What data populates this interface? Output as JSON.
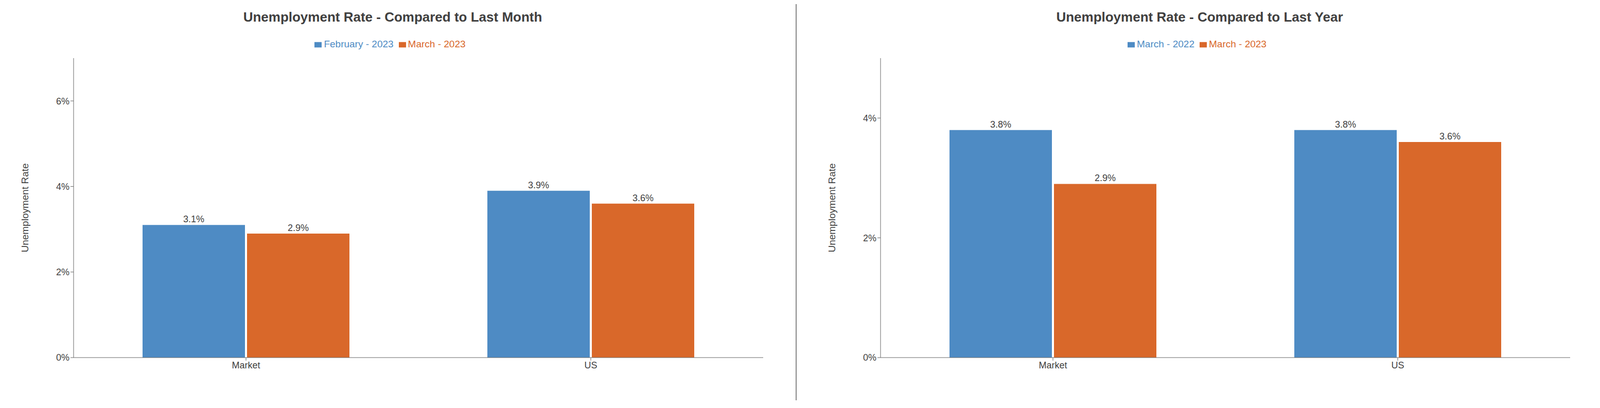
{
  "chart_data": [
    {
      "type": "bar",
      "title": "Unemployment Rate - Compared to Last Month",
      "categories": [
        "Market",
        "US"
      ],
      "series": [
        {
          "name": "February - 2023",
          "color": "#4e8bc4",
          "values": [
            3.1,
            3.9
          ],
          "value_labels": [
            "3.1%",
            "3.9%"
          ]
        },
        {
          "name": "March - 2023",
          "color": "#d9682a",
          "values": [
            2.9,
            3.6
          ],
          "value_labels": [
            "2.9%",
            "3.6%"
          ]
        }
      ],
      "ylabel": "Unemployment Rate",
      "ylim": [
        0,
        7.0
      ],
      "yticks": [
        {
          "value": 0,
          "label": "0%"
        },
        {
          "value": 2,
          "label": "2%"
        },
        {
          "value": 4,
          "label": "4%"
        },
        {
          "value": 6,
          "label": "6%"
        }
      ],
      "data_labels": true,
      "grid": false,
      "legend": "top"
    },
    {
      "type": "bar",
      "title": "Unemployment Rate - Compared to Last Year",
      "categories": [
        "Market",
        "US"
      ],
      "series": [
        {
          "name": "March - 2022",
          "color": "#4e8bc4",
          "values": [
            3.8,
            3.8
          ],
          "value_labels": [
            "3.8%",
            "3.8%"
          ]
        },
        {
          "name": "March - 2023",
          "color": "#d9682a",
          "values": [
            2.9,
            3.6
          ],
          "value_labels": [
            "2.9%",
            "3.6%"
          ]
        }
      ],
      "ylabel": "Unemployment Rate",
      "ylim": [
        0,
        5.0
      ],
      "yticks": [
        {
          "value": 0,
          "label": "0%"
        },
        {
          "value": 2,
          "label": "2%"
        },
        {
          "value": 4,
          "label": "4%"
        }
      ],
      "data_labels": true,
      "grid": false,
      "legend": "top"
    }
  ]
}
